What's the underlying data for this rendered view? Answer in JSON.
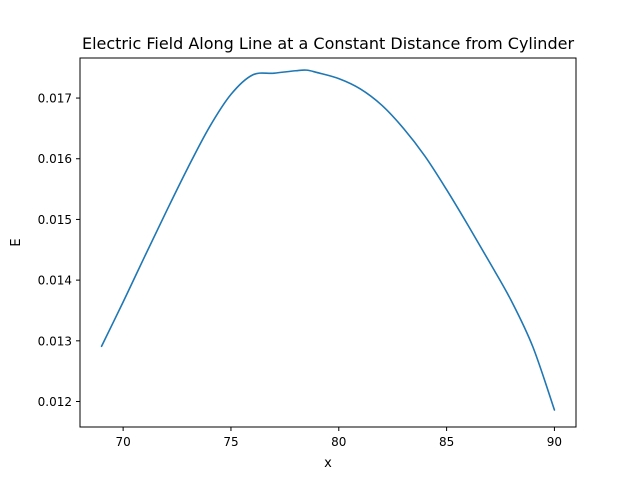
{
  "chart_data": {
    "type": "line",
    "title": "Electric Field Along Line at a Constant Distance from Cylinder",
    "xlabel": "x",
    "ylabel": "E",
    "xlim": [
      68.0,
      91.0
    ],
    "ylim": [
      0.01158,
      0.01766
    ],
    "x_ticks": [
      70,
      75,
      80,
      85,
      90
    ],
    "y_ticks": [
      0.012,
      0.013,
      0.014,
      0.015,
      0.016,
      0.017
    ],
    "x_tick_labels": [
      "70",
      "75",
      "80",
      "85",
      "90"
    ],
    "y_tick_labels": [
      "0.012",
      "0.013",
      "0.014",
      "0.015",
      "0.016",
      "0.017"
    ],
    "grid": false,
    "legend": "none",
    "line_color": "#1f77b4",
    "series": [
      {
        "x": [
          69.0,
          70.0,
          71.0,
          72.0,
          73.0,
          74.0,
          75.0,
          76.0,
          77.0,
          78.0,
          78.5,
          79.0,
          80.0,
          81.0,
          82.0,
          83.0,
          84.0,
          85.0,
          86.0,
          87.0,
          88.0,
          89.0,
          90.0
        ],
        "y": [
          0.01291,
          0.01364,
          0.01439,
          0.01513,
          0.01585,
          0.01652,
          0.01706,
          0.01738,
          0.01741,
          0.01745,
          0.01746,
          0.01742,
          0.01732,
          0.01715,
          0.01688,
          0.0165,
          0.01604,
          0.01549,
          0.0149,
          0.01429,
          0.01366,
          0.0129,
          0.01186
        ]
      }
    ]
  }
}
